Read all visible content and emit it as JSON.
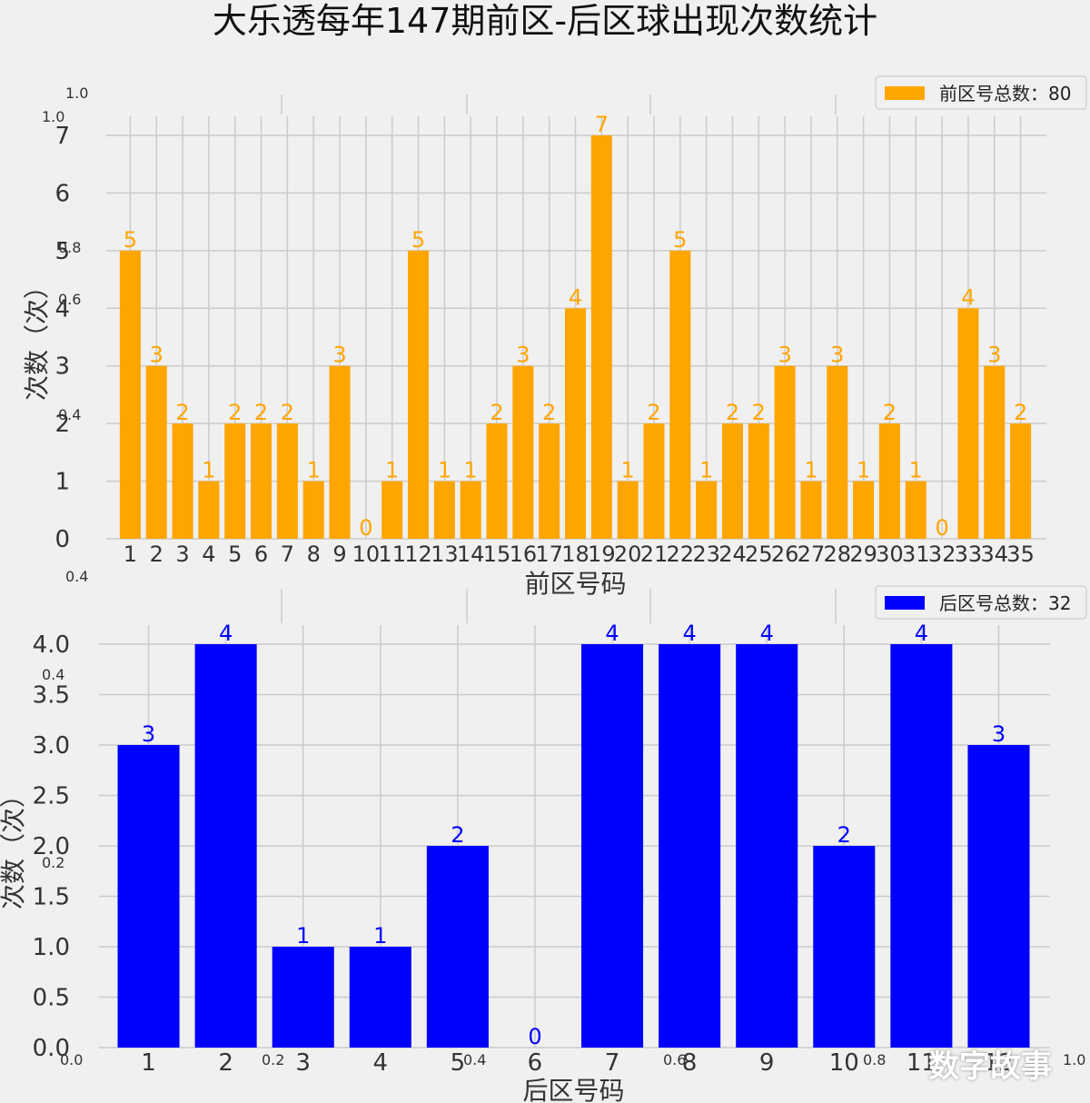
{
  "title": "大乐透每年147期前区-后区球出现次数统计",
  "watermark": "数字故事",
  "background_axis_ticks": {
    "top_labels": [
      "1.0",
      "1.0",
      "0.8",
      "0.6",
      "0.4"
    ],
    "bottom_labels": [
      "0.4",
      "0.2",
      "0.0",
      "0.2",
      "0.4",
      "0.6",
      "0.8",
      "1.0"
    ]
  },
  "chart_data": [
    {
      "type": "bar",
      "xlabel": "前区号码",
      "ylabel": "次数（次）",
      "legend": "前区号总数：80",
      "legend_position": "top-right",
      "color": "#ffa500",
      "grid": true,
      "ylim": [
        0,
        7
      ],
      "yticks": [
        "0",
        "1",
        "2",
        "3",
        "4",
        "5",
        "6",
        "7"
      ],
      "categories": [
        "1",
        "2",
        "3",
        "4",
        "5",
        "6",
        "7",
        "8",
        "9",
        "10",
        "11",
        "12",
        "13",
        "14",
        "15",
        "16",
        "17",
        "18",
        "19",
        "20",
        "21",
        "22",
        "23",
        "24",
        "25",
        "26",
        "27",
        "28",
        "29",
        "30",
        "31",
        "32",
        "33",
        "34",
        "35"
      ],
      "values": [
        5,
        3,
        2,
        1,
        2,
        2,
        2,
        1,
        3,
        0,
        1,
        5,
        1,
        1,
        2,
        3,
        2,
        4,
        7,
        1,
        2,
        5,
        1,
        2,
        2,
        3,
        1,
        3,
        1,
        2,
        1,
        0,
        4,
        3,
        2
      ]
    },
    {
      "type": "bar",
      "xlabel": "后区号码",
      "ylabel": "次数（次）",
      "legend": "后区号总数：32",
      "legend_position": "top-right",
      "color": "#0000ff",
      "grid": true,
      "ylim": [
        0,
        4
      ],
      "yticks": [
        "0.0",
        "0.5",
        "1.0",
        "1.5",
        "2.0",
        "2.5",
        "3.0",
        "3.5",
        "4.0"
      ],
      "categories": [
        "1",
        "2",
        "3",
        "4",
        "5",
        "6",
        "7",
        "8",
        "9",
        "10",
        "11",
        "12"
      ],
      "values": [
        3,
        4,
        1,
        1,
        2,
        0,
        4,
        4,
        4,
        2,
        4,
        3
      ]
    }
  ]
}
